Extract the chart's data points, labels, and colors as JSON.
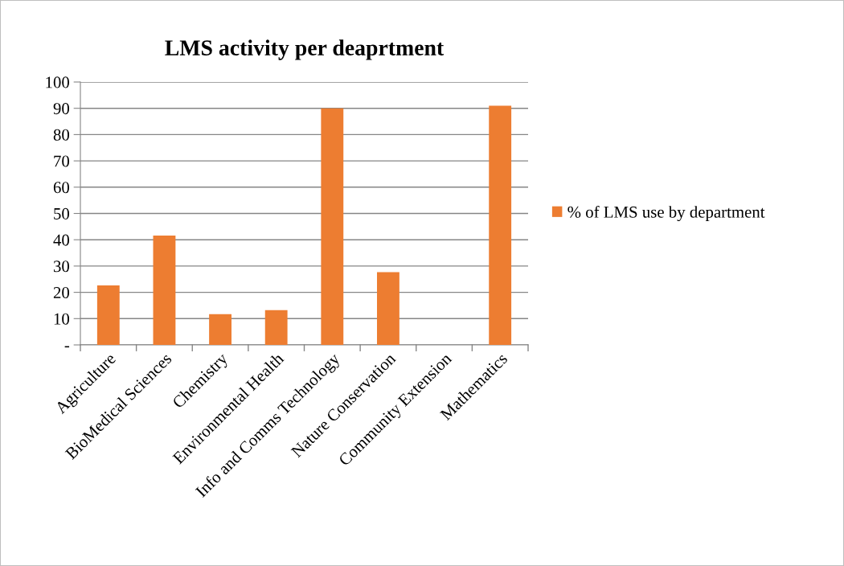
{
  "chart_data": {
    "type": "bar",
    "title": "LMS activity per deaprtment",
    "categories": [
      "Agriculture",
      "BioMedical Sciences",
      "Chemistry",
      "Environmental Health",
      "Info and Comms Technology",
      "Nature Conservation",
      "Community Extension",
      "Mathematics"
    ],
    "series": [
      {
        "name": "% of LMS use by department",
        "color": "#ed7d31",
        "values": [
          22.6,
          41.6,
          11.7,
          13.2,
          90,
          27.7,
          0,
          91
        ]
      }
    ],
    "ylim": [
      0,
      100
    ],
    "yticks": [
      {
        "value": 0,
        "label": "-"
      },
      10,
      20,
      30,
      40,
      50,
      60,
      70,
      80,
      90,
      100
    ],
    "grid": "y",
    "legend": "right"
  }
}
